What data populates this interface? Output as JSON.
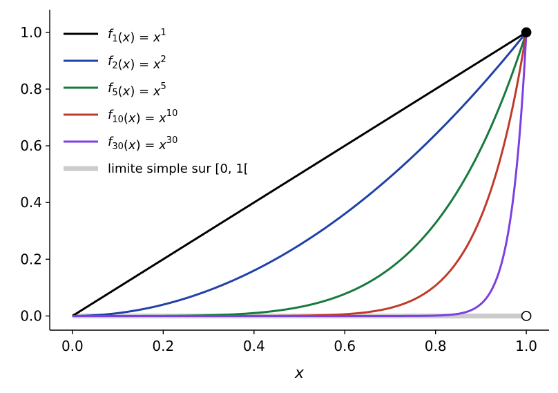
{
  "chart_data": {
    "type": "line",
    "title": "",
    "xlabel": "x",
    "ylabel": "",
    "xlim": [
      -0.05,
      1.05
    ],
    "ylim": [
      -0.05,
      1.08
    ],
    "x_ticks": [
      0.0,
      0.2,
      0.4,
      0.6,
      0.8,
      1.0
    ],
    "y_ticks": [
      0.0,
      0.2,
      0.4,
      0.6,
      0.8,
      1.0
    ],
    "x_tick_labels": [
      "0.0",
      "0.2",
      "0.4",
      "0.6",
      "0.8",
      "1.0"
    ],
    "y_tick_labels": [
      "0.0",
      "0.2",
      "0.4",
      "0.6",
      "0.8",
      "1.0"
    ],
    "grid": false,
    "legend_position": "top-left",
    "series": [
      {
        "name": "f1(x) = x^1",
        "legend": {
          "sub": "1",
          "sup": "1"
        },
        "exponent": 1,
        "color": "#000000"
      },
      {
        "name": "f2(x) = x^2",
        "legend": {
          "sub": "2",
          "sup": "2"
        },
        "exponent": 2,
        "color": "#2140a8"
      },
      {
        "name": "f5(x) = x^5",
        "legend": {
          "sub": "5",
          "sup": "5"
        },
        "exponent": 5,
        "color": "#167a3d"
      },
      {
        "name": "f10(x) = x^10",
        "legend": {
          "sub": "10",
          "sup": "10"
        },
        "exponent": 10,
        "color": "#c03a2b"
      },
      {
        "name": "f30(x) = x^30",
        "legend": {
          "sub": "30",
          "sup": "30"
        },
        "exponent": 30,
        "color": "#7b3fe4"
      }
    ],
    "limit": {
      "label": "limite simple sur [0, 1[",
      "x": [
        0,
        1
      ],
      "y": [
        0,
        0
      ],
      "color": "#cccccc"
    },
    "points": [
      {
        "x": 1.0,
        "y": 1.0,
        "style": "filled"
      },
      {
        "x": 1.0,
        "y": 0.0,
        "style": "open"
      }
    ]
  }
}
